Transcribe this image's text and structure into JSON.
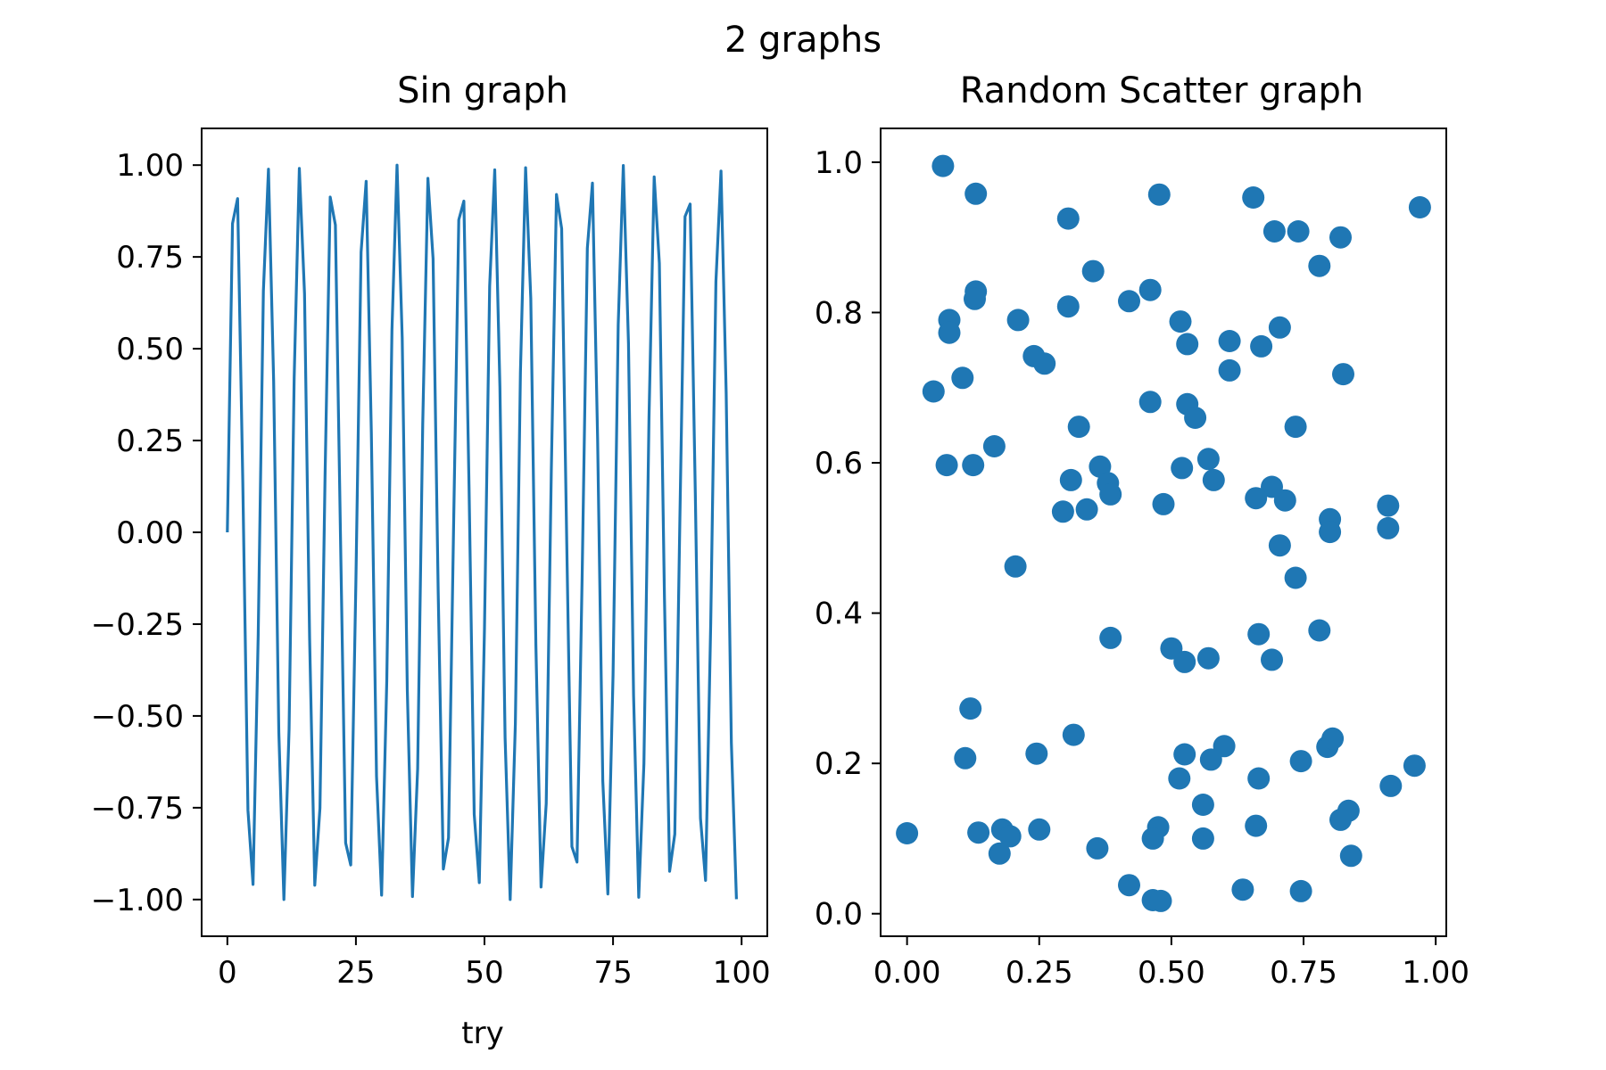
{
  "figure": {
    "suptitle": "2 graphs"
  },
  "colors": {
    "series": "#1f77b4"
  },
  "chart_data": [
    {
      "type": "line",
      "title": "Sin graph",
      "xlabel": "try",
      "ylabel": "",
      "xlim": [
        -5,
        105
      ],
      "ylim": [
        -1.1,
        1.1
      ],
      "grid": false,
      "xticks": [
        0,
        25,
        50,
        75,
        100
      ],
      "xtick_labels": [
        "0",
        "25",
        "50",
        "75",
        "100"
      ],
      "yticks": [
        -1.0,
        -0.75,
        -0.5,
        -0.25,
        0.0,
        0.25,
        0.5,
        0.75,
        1.0
      ],
      "ytick_labels": [
        "−1.00",
        "−0.75",
        "−0.50",
        "−0.25",
        "0.00",
        "0.25",
        "0.50",
        "0.75",
        "1.00"
      ],
      "series": [
        {
          "x": [
            0,
            1,
            2,
            3,
            4,
            5,
            6,
            7,
            8,
            9,
            10,
            11,
            12,
            13,
            14,
            15,
            16,
            17,
            18,
            19,
            20,
            21,
            22,
            23,
            24,
            25,
            26,
            27,
            28,
            29,
            30,
            31,
            32,
            33,
            34,
            35,
            36,
            37,
            38,
            39,
            40,
            41,
            42,
            43,
            44,
            45,
            46,
            47,
            48,
            49,
            50,
            51,
            52,
            53,
            54,
            55,
            56,
            57,
            58,
            59,
            60,
            61,
            62,
            63,
            64,
            65,
            66,
            67,
            68,
            69,
            70,
            71,
            72,
            73,
            74,
            75,
            76,
            77,
            78,
            79,
            80,
            81,
            82,
            83,
            84,
            85,
            86,
            87,
            88,
            89,
            90,
            91,
            92,
            93,
            94,
            95,
            96,
            97,
            98,
            99
          ],
          "y": [
            0.0,
            0.841,
            0.909,
            0.141,
            -0.757,
            -0.959,
            -0.279,
            0.657,
            0.989,
            0.412,
            -0.544,
            -1.0,
            -0.537,
            0.42,
            0.991,
            0.65,
            -0.288,
            -0.961,
            -0.751,
            0.15,
            0.913,
            0.837,
            -0.009,
            -0.846,
            -0.906,
            -0.132,
            0.763,
            0.956,
            0.271,
            -0.664,
            -0.988,
            -0.404,
            0.551,
            1.0,
            0.529,
            -0.428,
            -0.992,
            -0.644,
            0.296,
            0.964,
            0.745,
            -0.159,
            -0.917,
            -0.832,
            0.018,
            0.851,
            0.902,
            0.124,
            -0.768,
            -0.954,
            -0.262,
            0.67,
            0.987,
            0.396,
            -0.559,
            -1.0,
            -0.522,
            0.436,
            0.993,
            0.637,
            -0.305,
            -0.966,
            -0.739,
            0.167,
            0.92,
            0.827,
            -0.027,
            -0.856,
            -0.898,
            -0.115,
            0.774,
            0.951,
            0.254,
            -0.677,
            -0.985,
            -0.388,
            0.566,
            0.999,
            0.514,
            -0.444,
            -0.994,
            -0.63,
            0.313,
            0.968,
            0.733,
            -0.176,
            -0.923,
            -0.822,
            0.036,
            0.86,
            0.894,
            0.107,
            -0.779,
            -0.948,
            -0.245,
            0.683,
            0.984,
            0.38,
            -0.573,
            -0.999
          ]
        }
      ]
    },
    {
      "type": "scatter",
      "title": "Random Scatter graph",
      "xlabel": "",
      "ylabel": "",
      "xlim": [
        -0.05,
        1.02
      ],
      "ylim": [
        -0.03,
        1.045
      ],
      "grid": false,
      "xticks": [
        0.0,
        0.25,
        0.5,
        0.75,
        1.0
      ],
      "xtick_labels": [
        "0.00",
        "0.25",
        "0.50",
        "0.75",
        "1.00"
      ],
      "yticks": [
        0.0,
        0.2,
        0.4,
        0.6,
        0.8,
        1.0
      ],
      "ytick_labels": [
        "0.0",
        "0.2",
        "0.4",
        "0.6",
        "0.8",
        "1.0"
      ],
      "series": [
        {
          "x": [
            0.068,
            0.13,
            0.305,
            0.477,
            0.655,
            0.695,
            0.74,
            0.82,
            0.97,
            0.78,
            0.352,
            0.13,
            0.08,
            0.08,
            0.21,
            0.305,
            0.42,
            0.46,
            0.517,
            0.53,
            0.61,
            0.67,
            0.705,
            0.24,
            0.26,
            0.61,
            0.825,
            0.05,
            0.105,
            0.46,
            0.53,
            0.545,
            0.325,
            0.735,
            0.165,
            0.075,
            0.125,
            0.365,
            0.52,
            0.57,
            0.38,
            0.58,
            0.31,
            0.385,
            0.295,
            0.34,
            0.485,
            0.69,
            0.66,
            0.715,
            0.8,
            0.91,
            0.8,
            0.91,
            0.705,
            0.735,
            0.205,
            0.385,
            0.78,
            0.5,
            0.665,
            0.525,
            0.57,
            0.69,
            0.12,
            0.315,
            0.11,
            0.245,
            0.525,
            0.6,
            0.575,
            0.745,
            0.795,
            0.805,
            0.515,
            0.665,
            0.96,
            0.915,
            0.56,
            0.835,
            0.82,
            0.0,
            0.135,
            0.18,
            0.195,
            0.25,
            0.475,
            0.465,
            0.36,
            0.56,
            0.66,
            0.84,
            0.42,
            0.465,
            0.48,
            0.635,
            0.745,
            0.175,
            0.128
          ],
          "y": [
            0.995,
            0.958,
            0.925,
            0.957,
            0.953,
            0.908,
            0.908,
            0.9,
            0.94,
            0.862,
            0.855,
            0.828,
            0.79,
            0.773,
            0.79,
            0.808,
            0.815,
            0.83,
            0.788,
            0.758,
            0.762,
            0.755,
            0.78,
            0.742,
            0.732,
            0.723,
            0.718,
            0.695,
            0.713,
            0.681,
            0.678,
            0.66,
            0.648,
            0.648,
            0.622,
            0.597,
            0.597,
            0.595,
            0.593,
            0.605,
            0.573,
            0.577,
            0.577,
            0.558,
            0.535,
            0.538,
            0.545,
            0.568,
            0.553,
            0.55,
            0.525,
            0.543,
            0.508,
            0.513,
            0.49,
            0.447,
            0.462,
            0.367,
            0.377,
            0.353,
            0.372,
            0.335,
            0.34,
            0.338,
            0.273,
            0.238,
            0.207,
            0.213,
            0.212,
            0.223,
            0.205,
            0.203,
            0.222,
            0.233,
            0.18,
            0.18,
            0.197,
            0.17,
            0.145,
            0.137,
            0.125,
            0.107,
            0.108,
            0.112,
            0.103,
            0.112,
            0.115,
            0.1,
            0.087,
            0.1,
            0.117,
            0.077,
            0.038,
            0.018,
            0.017,
            0.032,
            0.03,
            0.08,
            0.818
          ]
        }
      ]
    }
  ]
}
